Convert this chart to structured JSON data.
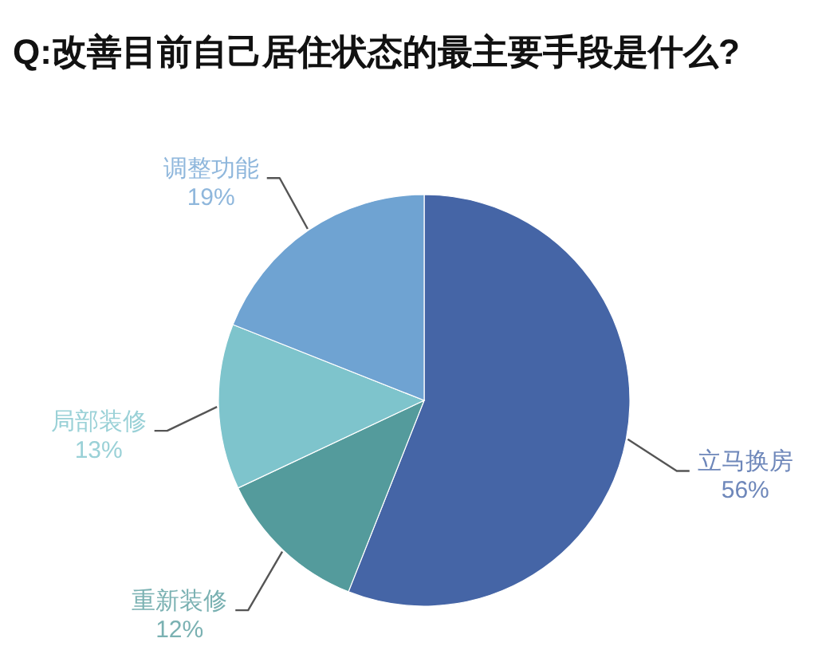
{
  "chart_data": {
    "type": "pie",
    "title": "Q:改善目前自己居住状态的最主要手段是什么?",
    "categories": [
      "立马换房",
      "重新装修",
      "局部装修",
      "调整功能"
    ],
    "values": [
      56,
      12,
      13,
      19
    ],
    "colors": [
      "#4565a6",
      "#549b9c",
      "#7ec4cc",
      "#6fa3d2"
    ],
    "value_labels": [
      "56%",
      "12%",
      "13%",
      "19%"
    ]
  }
}
